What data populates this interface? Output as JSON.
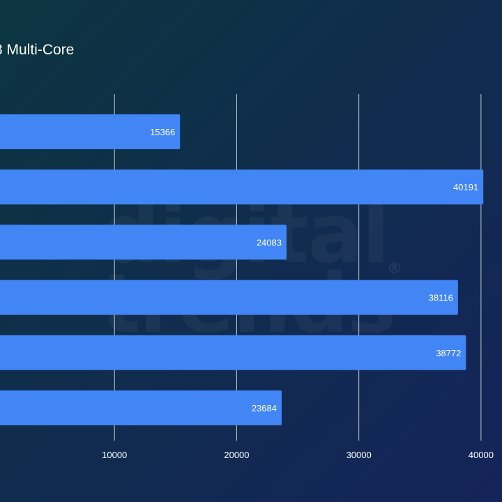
{
  "chart_data": {
    "type": "bar",
    "orientation": "horizontal",
    "title": "3 Multi-Core",
    "categories": [
      "",
      "",
      "",
      "",
      "",
      ""
    ],
    "values": [
      15366,
      40191,
      24083,
      38116,
      38772,
      23684
    ],
    "xlim": [
      0,
      40000
    ],
    "xticks": [
      10000,
      20000,
      30000,
      40000
    ],
    "grid": true,
    "bar_color": "#4285f4",
    "grid_color": "#ffffff"
  },
  "watermark": {
    "line1": "digital",
    "line2": "trends",
    "symbol": "®"
  }
}
